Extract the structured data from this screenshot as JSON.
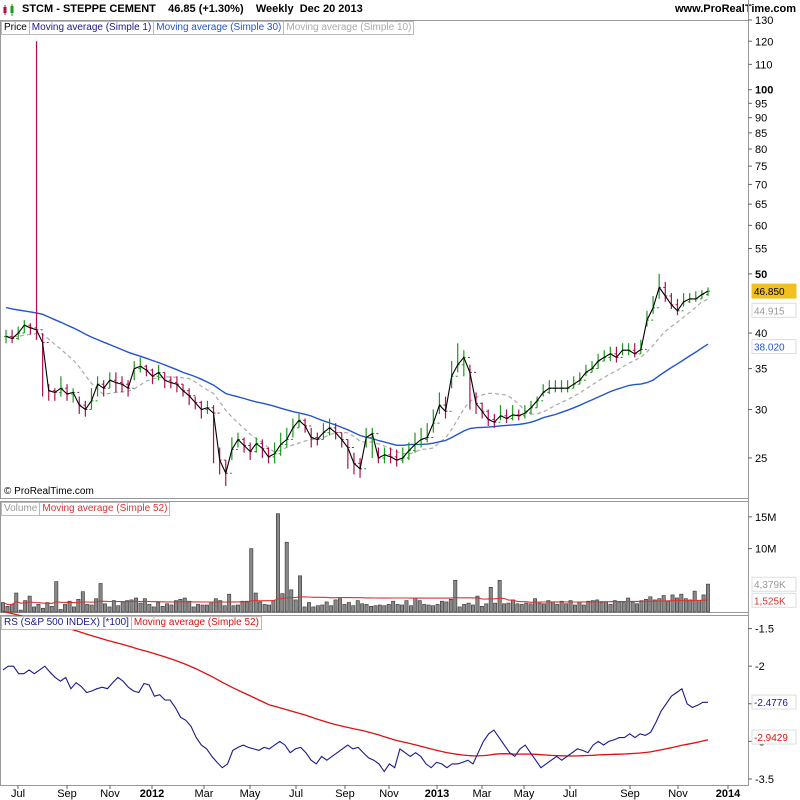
{
  "header": {
    "symbol": "STCM",
    "name": "STEPPE CEMENT",
    "price": "46.85",
    "change": "(+1.30%)",
    "period": "Weekly",
    "date": "Dec 20 2013",
    "site": "www.ProRealTime.com",
    "copyright": "© ProRealTime.com"
  },
  "colors": {
    "up": "#1a9a1a",
    "down": "#b0104a",
    "ma1": "#000000",
    "ma30": "#2255cc",
    "ma10": "#aaaaaa",
    "volume_bar": "#888888",
    "ma52_vol": "#dd3333",
    "rs": "#1a1a8a",
    "rs_ma": "#dd1111",
    "price_tag": "#f0c020"
  },
  "chart_data": [
    {
      "type": "line",
      "panel": "price",
      "legend": [
        "Price",
        "Moving average (Simple 1)",
        "Moving average (Simple 30)",
        "Moving average (Simple 10)"
      ],
      "y_scale": "log",
      "ylim": [
        21.5,
        130
      ],
      "y_ticks": [
        25,
        30,
        35,
        40,
        50,
        55,
        60,
        65,
        70,
        75,
        80,
        85,
        90,
        95,
        100,
        110,
        120,
        130
      ],
      "y_ticks_bold": [
        50,
        100
      ],
      "x_ticks": [
        "Jul",
        "Sep",
        "Nov",
        "2012",
        "Mar",
        "May",
        "Jul",
        "Sep",
        "Nov",
        "2013",
        "Mar",
        "May",
        "Jul",
        "Sep",
        "Nov",
        "2014"
      ],
      "x_ticks_bold": [
        "2012",
        "2013",
        "2014"
      ],
      "last_price": "46.850",
      "ma10_value": "44.915",
      "ma30_value": "38.020",
      "close": [
        39.5,
        39.2,
        40.0,
        41.2,
        40.8,
        40.5,
        38.6,
        32.2,
        32.0,
        32.5,
        31.8,
        32.0,
        30.5,
        30.0,
        31.0,
        33.0,
        32.5,
        33.5,
        33.2,
        33.0,
        32.5,
        35.0,
        35.3,
        34.8,
        34.0,
        34.5,
        33.5,
        33.2,
        33.0,
        32.2,
        31.6,
        30.8,
        30.0,
        30.2,
        29.6,
        24.8,
        23.6,
        25.8,
        26.8,
        26.2,
        25.6,
        26.4,
        25.9,
        25.1,
        25.4,
        26.3,
        26.8,
        28.0,
        28.8,
        28.2,
        27.0,
        26.8,
        27.5,
        28.0,
        27.5,
        26.8,
        26.0,
        24.5,
        24.0,
        27.0,
        27.4,
        25.0,
        25.3,
        25.1,
        24.8,
        25.0,
        25.7,
        26.3,
        26.8,
        27.0,
        28.5,
        30.5,
        29.8,
        34.0,
        35.5,
        36.5,
        34.5,
        30.7,
        29.8,
        28.9,
        28.6,
        29.3,
        29.0,
        29.4,
        29.3,
        29.6,
        30.2,
        31.0,
        32.0,
        32.5,
        32.5,
        32.5,
        32.5,
        33.0,
        33.5,
        34.5,
        35.0,
        36.0,
        36.5,
        37.0,
        36.5,
        37.5,
        37.5,
        37.0,
        37.6,
        42.0,
        44.0,
        47.5,
        46.0,
        44.5,
        43.5,
        45.0,
        45.5,
        45.5,
        46.25,
        46.85
      ],
      "high": [
        40.5,
        40.5,
        41.0,
        42.0,
        41.5,
        40.8,
        40.0,
        33.0,
        32.5,
        34.0,
        33.0,
        32.5,
        31.5,
        31.0,
        32.5,
        34.0,
        33.5,
        34.5,
        34.5,
        34.0,
        33.5,
        36.0,
        36.5,
        35.5,
        35.0,
        35.5,
        34.5,
        34.0,
        34.0,
        33.0,
        32.5,
        31.5,
        31.0,
        31.0,
        30.5,
        26.0,
        24.8,
        27.0,
        27.5,
        27.0,
        26.5,
        27.0,
        26.8,
        26.0,
        26.5,
        27.5,
        28.0,
        29.0,
        29.5,
        29.0,
        28.0,
        27.5,
        28.5,
        29.0,
        28.5,
        27.5,
        26.8,
        25.5,
        25.0,
        28.0,
        28.0,
        26.0,
        26.0,
        26.0,
        25.8,
        26.0,
        26.5,
        27.5,
        28.0,
        28.5,
        30.0,
        32.0,
        31.5,
        36.0,
        38.5,
        37.5,
        35.5,
        32.0,
        30.8,
        30.0,
        29.5,
        30.5,
        30.0,
        30.5,
        30.0,
        30.5,
        31.0,
        31.5,
        33.0,
        33.5,
        33.5,
        33.5,
        33.5,
        34.0,
        34.5,
        35.5,
        36.0,
        37.0,
        37.5,
        38.0,
        38.0,
        38.5,
        38.5,
        38.5,
        39.0,
        43.5,
        46.0,
        50.0,
        48.5,
        46.5,
        45.5,
        46.5,
        46.5,
        46.8,
        47.0,
        47.5
      ],
      "low": [
        38.5,
        38.5,
        39.0,
        40.0,
        39.8,
        39.0,
        31.5,
        31.0,
        31.0,
        31.5,
        31.0,
        30.8,
        29.5,
        29.2,
        30.0,
        31.5,
        31.5,
        32.5,
        32.0,
        32.0,
        31.5,
        33.5,
        34.5,
        34.0,
        33.0,
        33.5,
        32.5,
        32.5,
        32.0,
        31.5,
        30.5,
        30.0,
        29.0,
        29.5,
        24.5,
        23.5,
        22.5,
        24.8,
        26.0,
        25.5,
        24.8,
        25.5,
        25.0,
        24.5,
        24.5,
        25.2,
        26.0,
        27.0,
        28.0,
        27.5,
        26.0,
        26.2,
        26.8,
        27.2,
        26.8,
        26.0,
        24.0,
        23.5,
        23.2,
        26.0,
        25.0,
        24.5,
        24.5,
        24.5,
        24.2,
        24.5,
        24.8,
        25.5,
        26.0,
        26.5,
        27.5,
        29.5,
        29.0,
        32.5,
        34.5,
        34.0,
        30.0,
        29.5,
        29.0,
        28.2,
        28.0,
        28.8,
        28.5,
        28.8,
        28.8,
        29.0,
        29.5,
        30.2,
        31.5,
        31.8,
        32.0,
        32.0,
        32.0,
        32.5,
        33.0,
        34.0,
        34.5,
        35.0,
        36.0,
        36.0,
        35.8,
        36.8,
        36.8,
        36.5,
        37.0,
        41.0,
        43.0,
        45.5,
        45.0,
        43.8,
        42.8,
        44.2,
        44.8,
        45.0,
        45.5,
        46.0
      ],
      "spike": {
        "index": 5,
        "high": 120.0
      },
      "ma30_start": 46.0,
      "ma10_start": 39.5
    },
    {
      "type": "bar",
      "panel": "volume",
      "legend": [
        "Volume",
        "Moving average (Simple 52)"
      ],
      "y_ticks": [
        "15M",
        "10M"
      ],
      "ma_value": "4,379K",
      "vol_ma52_value": "1,525K",
      "values_k": [
        1500,
        900,
        1200,
        3000,
        300,
        1800,
        2500,
        800,
        1200,
        600,
        1500,
        900,
        4800,
        400,
        1200,
        1700,
        800,
        2000,
        3200,
        1200,
        1100,
        2100,
        4500,
        1300,
        800,
        1800,
        1000,
        1600,
        1800,
        1900,
        2200,
        1400,
        2100,
        1200,
        800,
        1500,
        900,
        1300,
        1100,
        1800,
        2000,
        2200,
        1700,
        800,
        1200,
        1100,
        1100,
        1600,
        2100,
        1800,
        1000,
        2800,
        1000,
        1100,
        1700,
        1700,
        10000,
        3000,
        1600,
        1200,
        1100,
        1800,
        15500,
        2900,
        11000,
        3500,
        1900,
        5700,
        800,
        1500,
        800,
        1000,
        1100,
        1600,
        1000,
        1900,
        2100,
        1200,
        1500,
        1000,
        1800,
        1300,
        1200,
        900,
        1000,
        1100,
        1000,
        1200,
        1700,
        1200,
        1100,
        1800,
        1000,
        2200,
        1800,
        1200,
        1100,
        1000,
        1200,
        1700,
        1600,
        2000,
        5000,
        800,
        1200,
        1400,
        1100,
        2500,
        900,
        1300,
        3900,
        1400,
        5000,
        1300,
        1400,
        1900,
        1300,
        1200,
        1400,
        1300,
        2100,
        1400,
        1300,
        1800,
        1600,
        1200,
        1700,
        1300,
        1800,
        1100,
        1600,
        1100,
        1700,
        1800,
        1900,
        1500,
        1600,
        1200,
        1800,
        1600,
        1500,
        2200,
        1600,
        1300,
        1800,
        2000,
        2400,
        1900,
        2100,
        2600,
        1700,
        2700,
        2200,
        2800,
        2100,
        1900,
        3300,
        1800,
        2700,
        4400
      ]
    },
    {
      "type": "line",
      "panel": "rs",
      "legend": [
        "RS (S&P 500 INDEX) [*100]",
        "Moving average (Simple 52)"
      ],
      "ylim": [
        -3.58,
        -1.32
      ],
      "y_ticks": [
        -1.5,
        -2,
        -2.5,
        -3,
        -3.5
      ],
      "y_tick_labels": [
        "-1.5",
        "-2",
        "-2.5",
        "-3",
        "-3.5"
      ],
      "rs_value": "-2.4776",
      "rs_ma_value": "-2.9429",
      "rs": [
        -2.05,
        -2.0,
        -2.0,
        -2.1,
        -2.1,
        -2.05,
        -2.1,
        -2.05,
        -2.0,
        -2.08,
        -2.15,
        -2.2,
        -2.15,
        -2.3,
        -2.22,
        -2.27,
        -2.35,
        -2.33,
        -2.3,
        -2.28,
        -2.3,
        -2.22,
        -2.15,
        -2.2,
        -2.28,
        -2.33,
        -2.35,
        -2.23,
        -2.25,
        -2.4,
        -2.38,
        -2.45,
        -2.45,
        -2.55,
        -2.68,
        -2.72,
        -2.8,
        -2.95,
        -3.05,
        -3.1,
        -3.2,
        -3.28,
        -3.35,
        -3.3,
        -3.12,
        -3.08,
        -3.05,
        -3.08,
        -3.1,
        -3.12,
        -3.08,
        -3.1,
        -3.05,
        -3.0,
        -3.05,
        -3.15,
        -3.1,
        -3.08,
        -3.15,
        -3.25,
        -3.3,
        -3.2,
        -3.25,
        -3.2,
        -3.15,
        -3.1,
        -3.05,
        -3.1,
        -3.08,
        -3.15,
        -3.22,
        -3.25,
        -3.3,
        -3.4,
        -3.3,
        -3.35,
        -3.1,
        -3.15,
        -3.2,
        -3.15,
        -3.2,
        -3.3,
        -3.35,
        -3.28,
        -3.3,
        -3.35,
        -3.3,
        -3.3,
        -3.28,
        -3.25,
        -3.3,
        -3.15,
        -3.0,
        -2.9,
        -2.85,
        -2.95,
        -3.05,
        -3.15,
        -3.2,
        -3.1,
        -3.05,
        -3.15,
        -3.25,
        -3.35,
        -3.3,
        -3.25,
        -3.2,
        -3.25,
        -3.2,
        -3.15,
        -3.1,
        -3.12,
        -3.15,
        -3.05,
        -3.0,
        -3.05,
        -3.0,
        -2.98,
        -2.95,
        -2.95,
        -2.9,
        -2.95,
        -2.9,
        -2.92,
        -2.88,
        -2.75,
        -2.6,
        -2.5,
        -2.4,
        -2.35,
        -2.3,
        -2.5,
        -2.55,
        -2.52,
        -2.48,
        -2.48
      ]
    }
  ]
}
